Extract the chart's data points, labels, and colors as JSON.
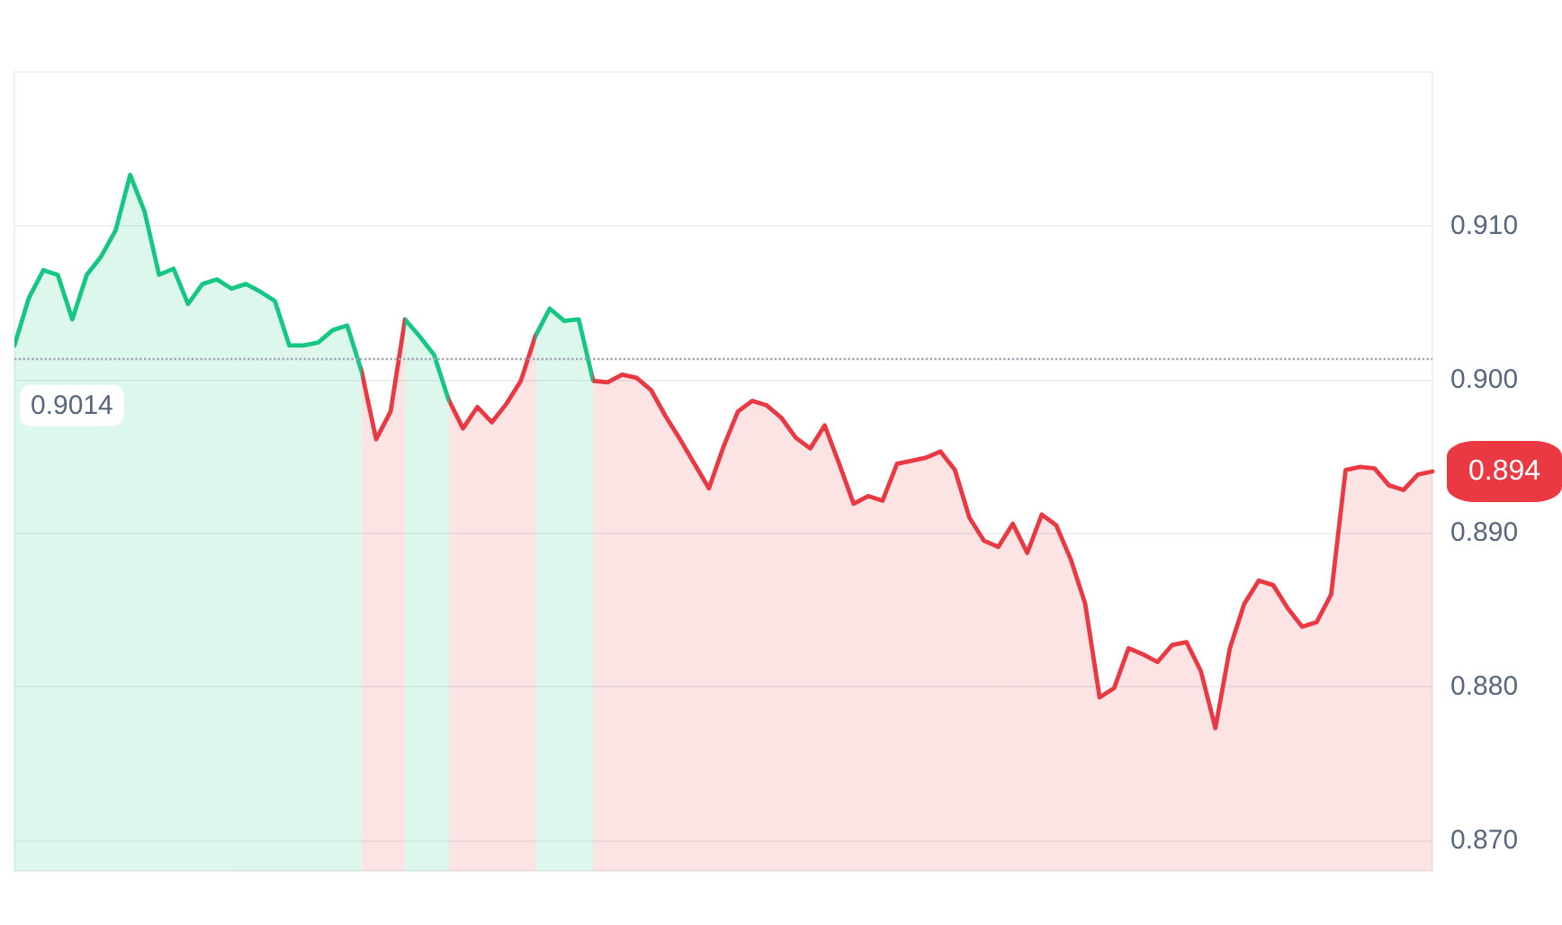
{
  "chart_data": {
    "type": "area",
    "categories": [
      null,
      null,
      null,
      null,
      null,
      null,
      null,
      null,
      null,
      null,
      null,
      null,
      null,
      null,
      null,
      null,
      null,
      null,
      null,
      null,
      null,
      null,
      null,
      null,
      null,
      null,
      null,
      null,
      null,
      null,
      null,
      null,
      null,
      null,
      null,
      null,
      null,
      null,
      null,
      null,
      null,
      null,
      null,
      null,
      null,
      null,
      null,
      null,
      null,
      null,
      null,
      null,
      null,
      null,
      null,
      null,
      null,
      null,
      null,
      null,
      null,
      null,
      null,
      null,
      null,
      null,
      null,
      null,
      null,
      null,
      null,
      null,
      null,
      null,
      null,
      null,
      null,
      null,
      null,
      null,
      null,
      null,
      null,
      null,
      null,
      null,
      null,
      null,
      null,
      null,
      null,
      null,
      null,
      null,
      null,
      null,
      null,
      null,
      null
    ],
    "series": [
      {
        "values": [
          0.9022,
          0.9053,
          0.9071,
          0.9068,
          0.9039,
          0.9068,
          0.908,
          0.9097,
          0.9133,
          0.9109,
          0.9068,
          0.9072,
          0.9049,
          0.9062,
          0.9065,
          0.9059,
          0.9062,
          0.9057,
          0.9051,
          0.9022,
          0.9022,
          0.9024,
          0.9032,
          0.9035,
          0.9005,
          0.8961,
          0.8979,
          0.9039,
          0.9028,
          0.9016,
          0.8987,
          0.8968,
          0.8982,
          0.8972,
          0.8984,
          0.8999,
          0.9028,
          0.9046,
          0.9038,
          0.9039,
          0.8999,
          0.8998,
          0.9003,
          0.9001,
          0.8993,
          0.8976,
          0.8961,
          0.8945,
          0.8929,
          0.8956,
          0.8979,
          0.8986,
          0.8983,
          0.8975,
          0.8962,
          0.8955,
          0.897,
          0.8945,
          0.8919,
          0.8924,
          0.8921,
          0.8945,
          0.8947,
          0.8949,
          0.8953,
          0.8941,
          0.891,
          0.8895,
          0.8891,
          0.8906,
          0.8887,
          0.8912,
          0.8905,
          0.8883,
          0.8854,
          0.8793,
          0.8799,
          0.8825,
          0.8821,
          0.8816,
          0.8827,
          0.8829,
          0.881,
          0.8773,
          0.8825,
          0.8854,
          0.8869,
          0.8866,
          0.8851,
          0.8839,
          0.8842,
          0.886,
          0.8941,
          0.8943,
          0.8942,
          0.8931,
          0.8928,
          0.8938,
          0.894
        ],
        "colors": [
          "#16c784",
          "#16c784",
          "#16c784",
          "#16c784",
          "#16c784",
          "#16c784",
          "#16c784",
          "#16c784",
          "#16c784",
          "#16c784",
          "#16c784",
          "#16c784",
          "#16c784",
          "#16c784",
          "#16c784",
          "#16c784",
          "#16c784",
          "#16c784",
          "#16c784",
          "#16c784",
          "#16c784",
          "#16c784",
          "#16c784",
          "#16c784",
          "#ea3943",
          "#ea3943",
          "#ea3943",
          "#16c784",
          "#16c784",
          "#16c784",
          "#ea3943",
          "#ea3943",
          "#ea3943",
          "#ea3943",
          "#ea3943",
          "#ea3943",
          "#16c784",
          "#16c784",
          "#16c784",
          "#16c784",
          "#ea3943",
          "#ea3943",
          "#ea3943",
          "#ea3943",
          "#ea3943",
          "#ea3943",
          "#ea3943",
          "#ea3943",
          "#ea3943",
          "#ea3943",
          "#ea3943",
          "#ea3943",
          "#ea3943",
          "#ea3943",
          "#ea3943",
          "#ea3943",
          "#ea3943",
          "#ea3943",
          "#ea3943",
          "#ea3943",
          "#ea3943",
          "#ea3943",
          "#ea3943",
          "#ea3943",
          "#ea3943",
          "#ea3943",
          "#ea3943",
          "#ea3943",
          "#ea3943",
          "#ea3943",
          "#ea3943",
          "#ea3943",
          "#ea3943",
          "#ea3943",
          "#ea3943",
          "#ea3943",
          "#ea3943",
          "#ea3943",
          "#ea3943",
          "#ea3943",
          "#ea3943",
          "#ea3943",
          "#ea3943",
          "#ea3943",
          "#ea3943",
          "#ea3943",
          "#ea3943",
          "#ea3943",
          "#ea3943",
          "#ea3943",
          "#ea3943",
          "#ea3943",
          "#ea3943",
          "#ea3943",
          "#ea3943",
          "#ea3943",
          "#ea3943",
          "#ea3943",
          "#ea3943"
        ]
      }
    ],
    "ylim": [
      0.868,
      0.92
    ],
    "yticks": [
      {
        "value": 0.87,
        "label": "0.870"
      },
      {
        "value": 0.88,
        "label": "0.880"
      },
      {
        "value": 0.89,
        "label": "0.890"
      },
      {
        "value": 0.9,
        "label": "0.900"
      },
      {
        "value": 0.91,
        "label": "0.910"
      }
    ],
    "ref_lines": [
      {
        "axis": "y",
        "value": 0.9014,
        "label": "0.9014",
        "color": "#a0a7b4",
        "line_style": "dotted"
      }
    ],
    "annotations": [
      "0.894"
    ],
    "grid": "y",
    "tick_labels": "y",
    "line_style": "solid"
  }
}
